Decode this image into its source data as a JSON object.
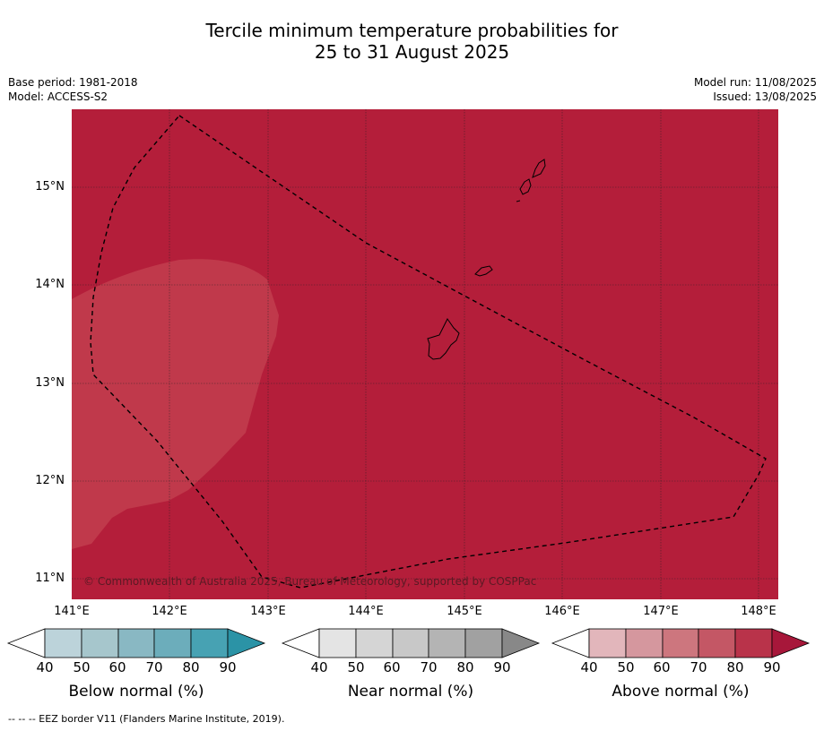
{
  "title": {
    "line1": "Tercile minimum temperature probabilities for",
    "line2": "25 to 31 August 2025"
  },
  "meta": {
    "base_period": "Base period: 1981-2018",
    "model": "Model: ACCESS-S2",
    "model_run": "Model run: 11/08/2025",
    "issued": "Issued: 13/08/2025"
  },
  "map": {
    "lon_range": [
      140.0,
      147.2
    ],
    "lat_range": [
      10.8,
      15.8
    ],
    "background_color": "#b41e3a",
    "lighter_region_color": "#c0394b",
    "x_ticks": [
      "141°E",
      "142°E",
      "143°E",
      "144°E",
      "145°E",
      "146°E",
      "147°E",
      "148°E"
    ],
    "y_ticks": [
      "15°N",
      "14°N",
      "13°N",
      "12°N",
      "11°N"
    ],
    "copyright": "© Commonwealth of Australia 2025, Bureau of Meteorology, supported by COSPPac"
  },
  "colorbars": [
    {
      "label": "Below normal (%)",
      "ticks": [
        "40",
        "50",
        "60",
        "70",
        "80",
        "90"
      ],
      "colors": [
        "#ffffff",
        "#bcd3da",
        "#a6c6cc",
        "#89b8c3",
        "#6cadbb",
        "#47a2b3",
        "#2b93a6"
      ]
    },
    {
      "label": "Near normal (%)",
      "ticks": [
        "40",
        "50",
        "60",
        "70",
        "80",
        "90"
      ],
      "colors": [
        "#ffffff",
        "#e4e4e4",
        "#d5d5d5",
        "#c8c8c8",
        "#b4b4b4",
        "#a1a1a1",
        "#888888"
      ]
    },
    {
      "label": "Above normal (%)",
      "ticks": [
        "40",
        "50",
        "60",
        "70",
        "80",
        "90"
      ],
      "colors": [
        "#ffffff",
        "#e2b6bb",
        "#d5979e",
        "#cd767e",
        "#c45765",
        "#b9334a",
        "#a7173a"
      ]
    }
  ],
  "footer": "--  --  -- EEZ border V11 (Flanders Marine Institute, 2019)."
}
